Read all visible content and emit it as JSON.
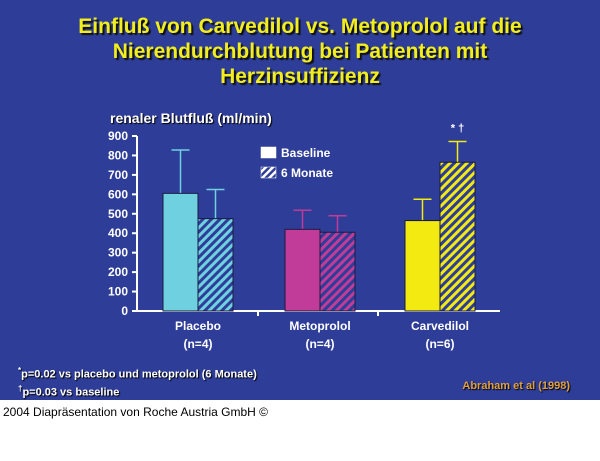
{
  "title": [
    "Einfluß von Carvedilol vs. Metoprolol auf die",
    "Nierendurchblutung bei Patienten mit",
    "Herzinsuffizienz"
  ],
  "chart_data": {
    "type": "bar",
    "ylabel": "renaler Blutfluß (ml/min)",
    "ylim": [
      0,
      900
    ],
    "yticks": [
      0,
      100,
      200,
      300,
      400,
      500,
      600,
      700,
      800,
      900
    ],
    "categories": [
      "Placebo",
      "Metoprolol",
      "Carvedilol"
    ],
    "category_n": [
      "(n=4)",
      "(n=4)",
      "(n=6)"
    ],
    "group_colors": [
      "#6fd0e0",
      "#c03c98",
      "#f2ea10"
    ],
    "legend_position": "top-center",
    "series": [
      {
        "name": "Baseline",
        "pattern": "solid",
        "values": [
          605,
          420,
          465
        ],
        "error_upper": [
          828,
          518,
          575
        ]
      },
      {
        "name": "6 Monate",
        "pattern": "hatched",
        "values": [
          475,
          405,
          765
        ],
        "error_upper": [
          625,
          490,
          872
        ]
      }
    ],
    "annotations": [
      {
        "category": "Carvedilol",
        "series": "6 Monate",
        "text": "* †"
      }
    ]
  },
  "footnotes": [
    {
      "mark": "*",
      "text": "p=0.02 vs placebo und metoprolol (6 Monate)"
    },
    {
      "mark": "†",
      "text": "p=0.03 vs baseline"
    }
  ],
  "citation": "Abraham et al (1998)",
  "copyright": "2004 Diapräsentation von Roche Austria GmbH ©",
  "colors": {
    "background": "#2e3d98",
    "title": "#f2ee1e",
    "citation": "#e0a040"
  }
}
